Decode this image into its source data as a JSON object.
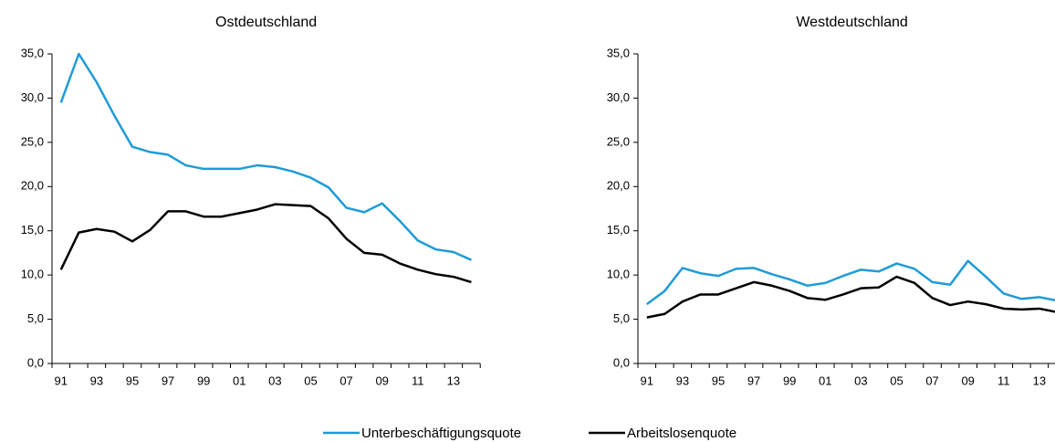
{
  "chart_data": [
    {
      "type": "line",
      "title": "Ostdeutschland",
      "categories": [
        "91",
        null,
        "93",
        null,
        "95",
        null,
        "97",
        null,
        "99",
        null,
        "01",
        null,
        "03",
        null,
        "05",
        null,
        "07",
        null,
        "09",
        null,
        "11",
        null,
        "13",
        null
      ],
      "series": [
        {
          "name": "Unterbeschäftigungsquote",
          "color": "#1f9bd7",
          "values": [
            29.5,
            35.0,
            31.8,
            28.0,
            24.5,
            23.9,
            23.6,
            22.4,
            22.0,
            22.0,
            22.0,
            22.4,
            22.2,
            21.7,
            21.0,
            19.9,
            17.6,
            17.1,
            18.1,
            16.1,
            13.9,
            12.9,
            12.6,
            11.7
          ]
        },
        {
          "name": "Arbeitslosenquote",
          "color": "#000000",
          "values": [
            10.6,
            14.8,
            15.2,
            14.9,
            13.8,
            15.1,
            17.2,
            17.2,
            16.6,
            16.6,
            17.0,
            17.4,
            18.0,
            17.9,
            17.8,
            16.4,
            14.1,
            12.5,
            12.3,
            11.3,
            10.6,
            10.1,
            9.8,
            9.2
          ]
        }
      ],
      "ylim": [
        0,
        35
      ],
      "yticks": [
        {
          "value": 0,
          "label": "0,0"
        },
        {
          "value": 5,
          "label": "5,0"
        },
        {
          "value": 10,
          "label": "10,0"
        },
        {
          "value": 15,
          "label": "15,0"
        },
        {
          "value": 20,
          "label": "20,0"
        },
        {
          "value": 25,
          "label": "25,0"
        },
        {
          "value": 30,
          "label": "30,0"
        },
        {
          "value": 35,
          "label": "35,0"
        }
      ]
    },
    {
      "type": "line",
      "title": "Westdeutschland",
      "categories": [
        "91",
        null,
        "93",
        null,
        "95",
        null,
        "97",
        null,
        "99",
        null,
        "01",
        null,
        "03",
        null,
        "05",
        null,
        "07",
        null,
        "09",
        null,
        "11",
        null,
        "13",
        null
      ],
      "series": [
        {
          "name": "Unterbeschäftigungsquote",
          "color": "#1f9bd7",
          "values": [
            6.7,
            8.2,
            10.8,
            10.2,
            9.9,
            10.7,
            10.8,
            10.1,
            9.5,
            8.8,
            9.1,
            9.9,
            10.6,
            10.4,
            11.3,
            10.7,
            9.2,
            8.9,
            11.6,
            9.8,
            7.9,
            7.3,
            7.5,
            7.1
          ]
        },
        {
          "name": "Arbeitslosenquote",
          "color": "#000000",
          "values": [
            5.2,
            5.6,
            7.0,
            7.8,
            7.8,
            8.5,
            9.2,
            8.8,
            8.2,
            7.4,
            7.2,
            7.8,
            8.5,
            8.6,
            9.8,
            9.1,
            7.4,
            6.6,
            7.0,
            6.7,
            6.2,
            6.1,
            6.2,
            5.8
          ]
        }
      ],
      "ylim": [
        0,
        35
      ],
      "yticks": [
        {
          "value": 0,
          "label": "0,0"
        },
        {
          "value": 5,
          "label": "5,0"
        },
        {
          "value": 10,
          "label": "10,0"
        },
        {
          "value": 15,
          "label": "15,0"
        },
        {
          "value": 20,
          "label": "20,0"
        },
        {
          "value": 25,
          "label": "25,0"
        },
        {
          "value": 30,
          "label": "30,0"
        },
        {
          "value": 35,
          "label": "35,0"
        }
      ]
    }
  ]
}
